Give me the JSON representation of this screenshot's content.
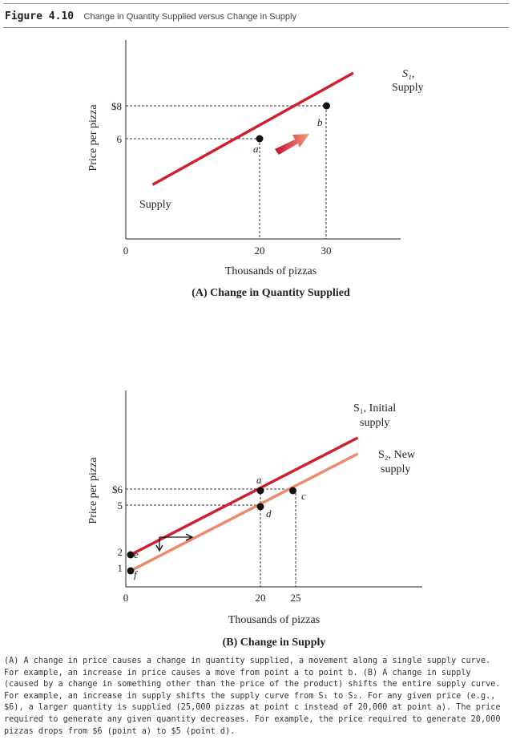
{
  "header": {
    "figure_label": "Figure 4.10",
    "figure_title": "Change in Quantity Supplied versus Change in Supply"
  },
  "chart_data": [
    {
      "type": "line",
      "title": "(A) Change in Quantity Supplied",
      "xlabel": "Thousands of pizzas",
      "ylabel": "Price per pizza",
      "x_ticks": [
        0,
        20,
        30
      ],
      "x_tick_labels": [
        "0",
        "20",
        "30"
      ],
      "y_ticks": [
        6,
        8
      ],
      "y_tick_labels": [
        "6",
        "$8"
      ],
      "series": [
        {
          "label_left": "Supply",
          "label_right": "S₁,",
          "label_right_2": "Supply",
          "color": "#d0202e",
          "x": [
            4,
            34
          ],
          "y": [
            3.2,
            10
          ]
        }
      ],
      "points": [
        {
          "name": "a",
          "x": 20,
          "y": 6
        },
        {
          "name": "b",
          "x": 30,
          "y": 8
        }
      ],
      "annotations": [
        "movement arrow from a to b"
      ],
      "grid": false
    },
    {
      "type": "line",
      "title": "(B) Change in Supply",
      "xlabel": "Thousands of pizzas",
      "ylabel": "Price per pizza",
      "x_ticks": [
        0,
        20,
        25
      ],
      "x_tick_labels": [
        "0",
        "20",
        "25"
      ],
      "y_ticks": [
        1,
        2,
        5,
        6
      ],
      "y_tick_labels": [
        "1",
        "2",
        "5",
        "$6"
      ],
      "series": [
        {
          "label": "S₁, Initial",
          "label_2": "supply",
          "color": "#d0202e",
          "x": [
            0,
            35
          ],
          "y": [
            2,
            9.3
          ]
        },
        {
          "label": "S₂, New",
          "label_2": "supply",
          "color": "#ec8a6c",
          "x": [
            0,
            35
          ],
          "y": [
            1,
            8.3
          ]
        }
      ],
      "points": [
        {
          "name": "e",
          "x": 0,
          "y": 2
        },
        {
          "name": "f",
          "x": 0,
          "y": 1
        },
        {
          "name": "a",
          "x": 20,
          "y": 6
        },
        {
          "name": "d",
          "x": 20,
          "y": 5
        },
        {
          "name": "c",
          "x": 25,
          "y": 6
        }
      ],
      "annotations": [
        "shift arrows from S₁ to S₂"
      ],
      "grid": false
    }
  ],
  "caption": {
    "text": "(A) A change in price causes a change in quantity supplied, a movement along a single supply curve. For example, an increase in price causes a move from point a to point b. (B) A change in supply (caused by a change in something other than the price of the product) shifts the entire supply curve. For example, an increase in supply shifts the supply curve from S₁ to S₂. For any given price (e.g., $6), a larger quantity is supplied (25,000 pizzas at point c instead of 20,000 at point a). The price required to generate any given quantity decreases. For example, the price required to generate 20,000 pizzas drops from $6 (point a) to $5 (point d)."
  }
}
